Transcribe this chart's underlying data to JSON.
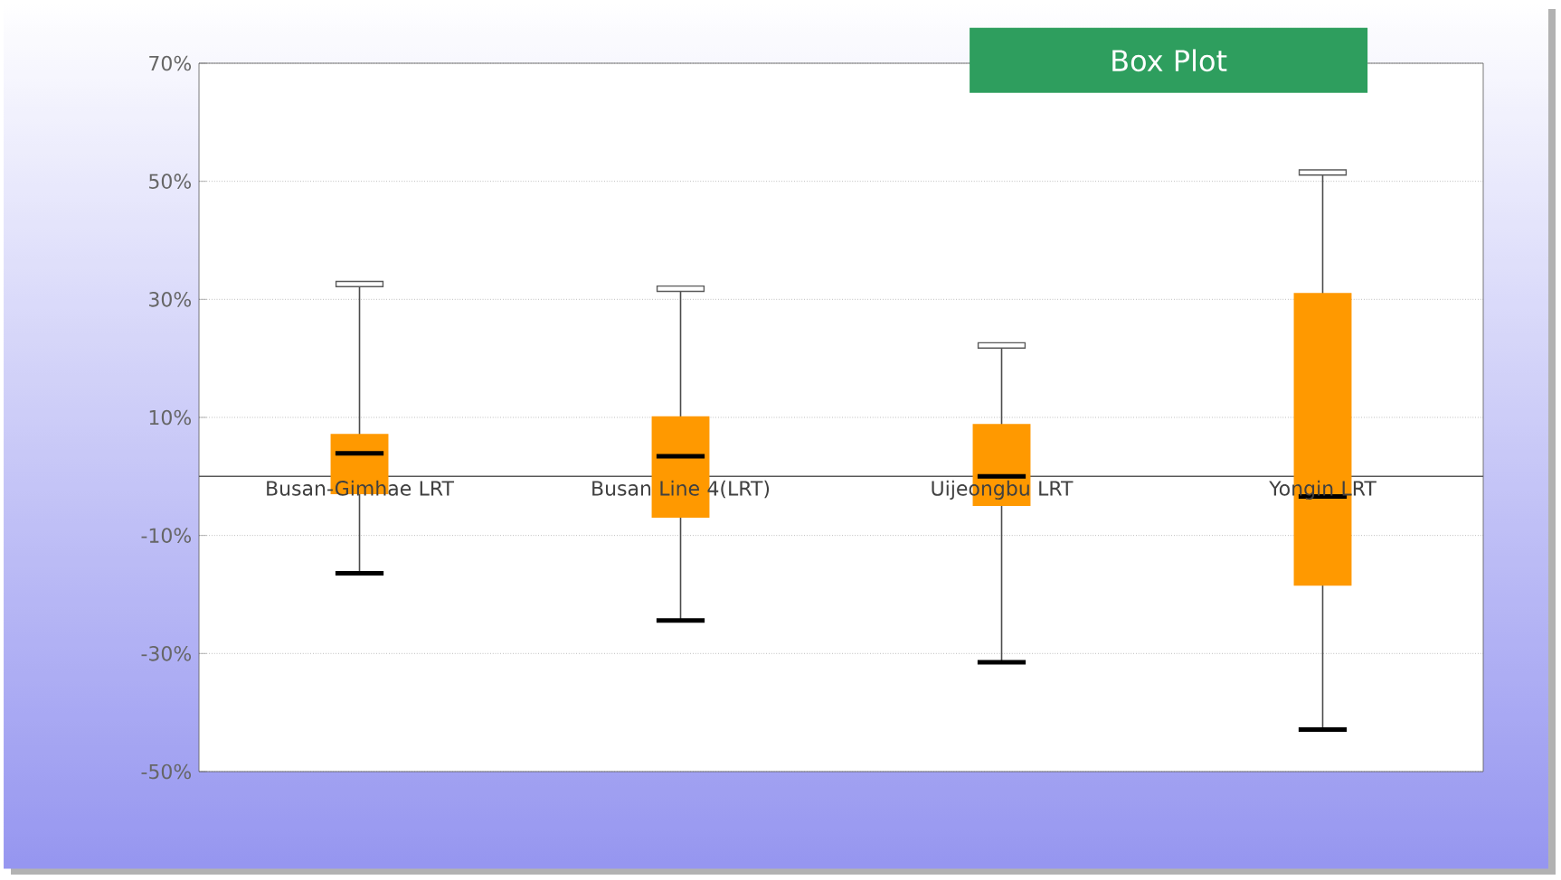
{
  "chart_data": {
    "type": "box",
    "title": "Box Plot",
    "categories": [
      "Busan-Gimhae LRT",
      "Busan Line 4(LRT)",
      "Uijeongbu LRT",
      "Yongin LRT"
    ],
    "boxes": [
      {
        "low": -16.4,
        "q1": -3,
        "median": 3.9,
        "q3": 7.2,
        "high": 32.6
      },
      {
        "low": -24.4,
        "q1": -7,
        "median": 3.4,
        "q3": 10.2,
        "high": 31.8
      },
      {
        "low": -31.5,
        "q1": -5,
        "median": 0,
        "q3": 8.9,
        "high": 22.2
      },
      {
        "low": -42.9,
        "q1": -18.5,
        "median": -3.4,
        "q3": 31.1,
        "high": 51.5
      }
    ],
    "color": "#ff9900",
    "ylim": [
      -50,
      70
    ],
    "yticks": [
      {
        "value": -50,
        "label": "-50%"
      },
      {
        "value": -30,
        "label": "-30%"
      },
      {
        "value": -10,
        "label": "-10%"
      },
      {
        "value": 10,
        "label": "10%"
      },
      {
        "value": 30,
        "label": "30%"
      },
      {
        "value": 50,
        "label": "50%"
      },
      {
        "value": 70,
        "label": "70%"
      }
    ],
    "grid": "y"
  }
}
